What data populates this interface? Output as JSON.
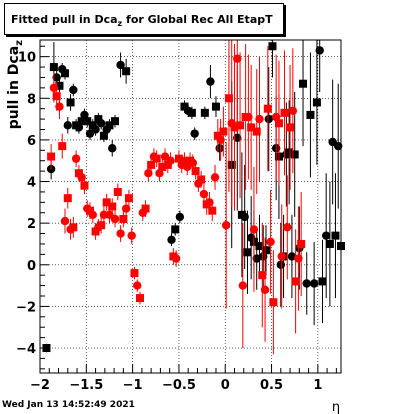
{
  "title": {
    "prefix": "Fitted pull in Dca",
    "sub": "z",
    "suffix": " for Global Rec All EtapT"
  },
  "footer": "Wed Jan 13 14:52:49 2021",
  "chart_data": {
    "type": "scatter",
    "xlabel": "η",
    "ylabel_prefix": "pull in Dca",
    "ylabel_sub": "z",
    "xlim": [
      -2.0,
      1.25
    ],
    "ylim": [
      -5.2,
      10.8
    ],
    "x_ticks": [
      -2,
      -1.5,
      -1,
      -0.5,
      0,
      0.5,
      1
    ],
    "x_tick_labels": [
      "−2",
      "−1.5",
      "−1",
      "−0.5",
      "0",
      "0.5",
      "1"
    ],
    "y_ticks": [
      -4,
      -2,
      0,
      2,
      4,
      6,
      8,
      10
    ],
    "y_tick_labels": [
      "−4",
      "−2",
      "0",
      "2",
      "4",
      "6",
      "8",
      "10"
    ],
    "grid": true,
    "series": [
      {
        "color": "#000000",
        "points": [
          {
            "x": -1.93,
            "y": -4.0,
            "e": 0.2
          },
          {
            "x": -1.88,
            "y": 4.6,
            "e": 0.5
          },
          {
            "x": -1.85,
            "y": 9.5,
            "e": 1.2
          },
          {
            "x": -1.82,
            "y": 9.0,
            "e": 0.4
          },
          {
            "x": -1.79,
            "y": 8.6,
            "e": 0.3
          },
          {
            "x": -1.76,
            "y": 9.4,
            "e": 0.3
          },
          {
            "x": -1.73,
            "y": 9.2,
            "e": 0.3
          },
          {
            "x": -1.7,
            "y": 6.7,
            "e": 0.4
          },
          {
            "x": -1.67,
            "y": 7.8,
            "e": 0.4
          },
          {
            "x": -1.64,
            "y": 8.4,
            "e": 0.3
          },
          {
            "x": -1.61,
            "y": 6.7,
            "e": 0.3
          },
          {
            "x": -1.58,
            "y": 6.6,
            "e": 0.3
          },
          {
            "x": -1.55,
            "y": 6.9,
            "e": 0.4
          },
          {
            "x": -1.52,
            "y": 7.2,
            "e": 0.3
          },
          {
            "x": -1.49,
            "y": 6.9,
            "e": 0.3
          },
          {
            "x": -1.46,
            "y": 6.3,
            "e": 0.3
          },
          {
            "x": -1.43,
            "y": 6.7,
            "e": 0.3
          },
          {
            "x": -1.4,
            "y": 6.5,
            "e": 0.3
          },
          {
            "x": -1.37,
            "y": 7.0,
            "e": 0.3
          },
          {
            "x": -1.34,
            "y": 6.8,
            "e": 0.3
          },
          {
            "x": -1.31,
            "y": 6.2,
            "e": 0.3
          },
          {
            "x": -1.28,
            "y": 6.5,
            "e": 0.3
          },
          {
            "x": -1.25,
            "y": 6.7,
            "e": 0.3
          },
          {
            "x": -1.22,
            "y": 5.6,
            "e": 0.4
          },
          {
            "x": -1.19,
            "y": 6.9,
            "e": 0.3
          },
          {
            "x": -1.13,
            "y": 9.6,
            "e": 0.6
          },
          {
            "x": -1.07,
            "y": 9.3,
            "e": 0.6
          },
          {
            "x": -0.58,
            "y": 1.2,
            "e": 0.3
          },
          {
            "x": -0.54,
            "y": 1.7,
            "e": 0.3
          },
          {
            "x": -0.49,
            "y": 2.3,
            "e": 0.3
          },
          {
            "x": -0.44,
            "y": 7.6,
            "e": 0.3
          },
          {
            "x": -0.4,
            "y": 7.4,
            "e": 0.3
          },
          {
            "x": -0.36,
            "y": 7.3,
            "e": 0.3
          },
          {
            "x": -0.33,
            "y": 6.3,
            "e": 0.3
          },
          {
            "x": -0.22,
            "y": 7.3,
            "e": 0.3
          },
          {
            "x": -0.16,
            "y": 8.8,
            "e": 0.8
          },
          {
            "x": -0.1,
            "y": 7.6,
            "e": 0.5
          },
          {
            "x": -0.06,
            "y": 5.6,
            "e": 0.6
          },
          {
            "x": 0.07,
            "y": 4.8,
            "e": 4.0
          },
          {
            "x": 0.13,
            "y": 6.1,
            "e": 3.5
          },
          {
            "x": 0.18,
            "y": 2.4,
            "e": 3.0
          },
          {
            "x": 0.21,
            "y": 2.3,
            "e": 2.5
          },
          {
            "x": 0.24,
            "y": 0.6,
            "e": 2.0
          },
          {
            "x": 0.28,
            "y": 1.3,
            "e": 2.0
          },
          {
            "x": 0.31,
            "y": 1.1,
            "e": 1.5
          },
          {
            "x": 0.34,
            "y": 0.3,
            "e": 1.5
          },
          {
            "x": 0.37,
            "y": 0.9,
            "e": 1.5
          },
          {
            "x": 0.41,
            "y": 0.4,
            "e": 1.5
          },
          {
            "x": 0.44,
            "y": 0.7,
            "e": 1.2
          },
          {
            "x": 0.47,
            "y": 7.0,
            "e": 2.5
          },
          {
            "x": 0.51,
            "y": 10.5,
            "e": 1.5
          },
          {
            "x": 0.55,
            "y": 5.6,
            "e": 2.5
          },
          {
            "x": 0.58,
            "y": 5.2,
            "e": 3.0
          },
          {
            "x": 0.6,
            "y": 0.0,
            "e": 2.0
          },
          {
            "x": 0.63,
            "y": 0.4,
            "e": 2.0
          },
          {
            "x": 0.66,
            "y": 5.3,
            "e": 2.5
          },
          {
            "x": 0.69,
            "y": 5.4,
            "e": 2.5
          },
          {
            "x": 0.72,
            "y": 0.4,
            "e": 2.0
          },
          {
            "x": 0.75,
            "y": 5.3,
            "e": 3.0
          },
          {
            "x": 0.8,
            "y": 0.8,
            "e": 2.0
          },
          {
            "x": 0.84,
            "y": 8.7,
            "e": 3.0
          },
          {
            "x": 0.88,
            "y": -0.9,
            "e": 1.5
          },
          {
            "x": 0.92,
            "y": 7.2,
            "e": 3.0
          },
          {
            "x": 0.96,
            "y": -0.9,
            "e": 2.0
          },
          {
            "x": 0.99,
            "y": 7.8,
            "e": 3.0
          },
          {
            "x": 1.02,
            "y": 10.3,
            "e": 2.0
          },
          {
            "x": 1.05,
            "y": -0.8,
            "e": 2.0
          },
          {
            "x": 1.09,
            "y": 1.4,
            "e": 3.0
          },
          {
            "x": 1.13,
            "y": 1.0,
            "e": 3.0
          },
          {
            "x": 1.16,
            "y": 5.9,
            "e": 3.0
          },
          {
            "x": 1.19,
            "y": 1.4,
            "e": 3.0
          },
          {
            "x": 1.22,
            "y": 5.7,
            "e": 3.0
          },
          {
            "x": 1.25,
            "y": 0.9,
            "e": 3.0
          }
        ]
      },
      {
        "color": "#ff0000",
        "points": [
          {
            "x": -1.88,
            "y": 5.2,
            "e": 0.6
          },
          {
            "x": -1.85,
            "y": 8.5,
            "e": 0.7
          },
          {
            "x": -1.82,
            "y": 8.1,
            "e": 0.7
          },
          {
            "x": -1.79,
            "y": 7.6,
            "e": 0.6
          },
          {
            "x": -1.76,
            "y": 5.7,
            "e": 0.6
          },
          {
            "x": -1.73,
            "y": 2.1,
            "e": 0.6
          },
          {
            "x": -1.7,
            "y": 3.2,
            "e": 0.5
          },
          {
            "x": -1.67,
            "y": 1.7,
            "e": 0.5
          },
          {
            "x": -1.64,
            "y": 1.8,
            "e": 0.5
          },
          {
            "x": -1.61,
            "y": 5.1,
            "e": 0.4
          },
          {
            "x": -1.58,
            "y": 4.4,
            "e": 0.4
          },
          {
            "x": -1.55,
            "y": 4.2,
            "e": 0.4
          },
          {
            "x": -1.52,
            "y": 3.8,
            "e": 0.4
          },
          {
            "x": -1.49,
            "y": 2.7,
            "e": 0.4
          },
          {
            "x": -1.46,
            "y": 2.6,
            "e": 0.4
          },
          {
            "x": -1.43,
            "y": 2.4,
            "e": 0.4
          },
          {
            "x": -1.4,
            "y": 1.6,
            "e": 0.4
          },
          {
            "x": -1.37,
            "y": 1.8,
            "e": 0.4
          },
          {
            "x": -1.34,
            "y": 1.9,
            "e": 0.4
          },
          {
            "x": -1.31,
            "y": 2.4,
            "e": 0.4
          },
          {
            "x": -1.28,
            "y": 3.0,
            "e": 0.4
          },
          {
            "x": -1.25,
            "y": 2.4,
            "e": 0.4
          },
          {
            "x": -1.22,
            "y": 2.8,
            "e": 0.4
          },
          {
            "x": -1.19,
            "y": 2.2,
            "e": 0.4
          },
          {
            "x": -1.16,
            "y": 3.5,
            "e": 0.4
          },
          {
            "x": -1.13,
            "y": 1.5,
            "e": 0.4
          },
          {
            "x": -1.1,
            "y": 2.2,
            "e": 0.4
          },
          {
            "x": -1.07,
            "y": 2.7,
            "e": 0.4
          },
          {
            "x": -1.04,
            "y": 3.2,
            "e": 0.4
          },
          {
            "x": -1.01,
            "y": 1.4,
            "e": 0.4
          },
          {
            "x": -0.98,
            "y": -0.4,
            "e": 0.3
          },
          {
            "x": -0.95,
            "y": -1.0,
            "e": 0.3
          },
          {
            "x": -0.92,
            "y": -1.6,
            "e": 0.3
          },
          {
            "x": -0.89,
            "y": 2.5,
            "e": 0.4
          },
          {
            "x": -0.86,
            "y": 2.7,
            "e": 0.4
          },
          {
            "x": -0.83,
            "y": 4.4,
            "e": 0.4
          },
          {
            "x": -0.8,
            "y": 4.8,
            "e": 0.4
          },
          {
            "x": -0.77,
            "y": 5.2,
            "e": 0.4
          },
          {
            "x": -0.74,
            "y": 5.1,
            "e": 0.4
          },
          {
            "x": -0.71,
            "y": 4.4,
            "e": 0.4
          },
          {
            "x": -0.68,
            "y": 4.7,
            "e": 0.4
          },
          {
            "x": -0.65,
            "y": 5.2,
            "e": 0.4
          },
          {
            "x": -0.62,
            "y": 4.8,
            "e": 0.4
          },
          {
            "x": -0.59,
            "y": 5.0,
            "e": 0.4
          },
          {
            "x": -0.56,
            "y": 0.4,
            "e": 0.4
          },
          {
            "x": -0.53,
            "y": 0.3,
            "e": 0.4
          },
          {
            "x": -0.5,
            "y": 5.1,
            "e": 0.4
          },
          {
            "x": -0.47,
            "y": 4.8,
            "e": 0.4
          },
          {
            "x": -0.44,
            "y": 5.0,
            "e": 0.4
          },
          {
            "x": -0.41,
            "y": 4.7,
            "e": 0.4
          },
          {
            "x": -0.38,
            "y": 5.0,
            "e": 0.4
          },
          {
            "x": -0.35,
            "y": 4.9,
            "e": 0.4
          },
          {
            "x": -0.32,
            "y": 4.5,
            "e": 0.4
          },
          {
            "x": -0.29,
            "y": 3.9,
            "e": 0.4
          },
          {
            "x": -0.26,
            "y": 4.1,
            "e": 0.4
          },
          {
            "x": -0.23,
            "y": 3.4,
            "e": 0.5
          },
          {
            "x": -0.2,
            "y": 2.9,
            "e": 0.5
          },
          {
            "x": -0.17,
            "y": 3.0,
            "e": 0.5
          },
          {
            "x": -0.14,
            "y": 2.6,
            "e": 0.5
          },
          {
            "x": -0.11,
            "y": 4.2,
            "e": 0.6
          },
          {
            "x": -0.08,
            "y": 6.2,
            "e": 0.8
          },
          {
            "x": -0.05,
            "y": 6.0,
            "e": 1.0
          },
          {
            "x": -0.02,
            "y": 6.4,
            "e": 1.2
          },
          {
            "x": 0.01,
            "y": 1.9,
            "e": 4.0
          },
          {
            "x": 0.04,
            "y": 8.0,
            "e": 4.5
          },
          {
            "x": 0.07,
            "y": 6.8,
            "e": 4.0
          },
          {
            "x": 0.1,
            "y": 6.6,
            "e": 4.0
          },
          {
            "x": 0.13,
            "y": 9.9,
            "e": 3.5
          },
          {
            "x": 0.16,
            "y": 6.7,
            "e": 3.5
          },
          {
            "x": 0.19,
            "y": -1.0,
            "e": 3.0
          },
          {
            "x": 0.22,
            "y": 7.1,
            "e": 3.5
          },
          {
            "x": 0.25,
            "y": 7.1,
            "e": 3.0
          },
          {
            "x": 0.28,
            "y": 6.6,
            "e": 3.0
          },
          {
            "x": 0.31,
            "y": 1.7,
            "e": 3.0
          },
          {
            "x": 0.34,
            "y": 6.4,
            "e": 3.0
          },
          {
            "x": 0.37,
            "y": 7.0,
            "e": 3.0
          },
          {
            "x": 0.4,
            "y": -0.5,
            "e": 2.5
          },
          {
            "x": 0.43,
            "y": -1.2,
            "e": 2.5
          },
          {
            "x": 0.46,
            "y": 7.5,
            "e": 3.0
          },
          {
            "x": 0.49,
            "y": 1.1,
            "e": 2.5
          },
          {
            "x": 0.52,
            "y": -1.8,
            "e": 2.5
          },
          {
            "x": 0.55,
            "y": 7.1,
            "e": 3.0
          },
          {
            "x": 0.58,
            "y": 6.8,
            "e": 3.0
          },
          {
            "x": 0.61,
            "y": 0.4,
            "e": 2.5
          },
          {
            "x": 0.64,
            "y": 7.3,
            "e": 3.0
          },
          {
            "x": 0.67,
            "y": 1.8,
            "e": 2.5
          },
          {
            "x": 0.7,
            "y": 6.6,
            "e": 3.0
          },
          {
            "x": 0.73,
            "y": 7.4,
            "e": 3.0
          },
          {
            "x": 0.76,
            "y": -0.8,
            "e": 2.5
          },
          {
            "x": 0.79,
            "y": 0.3,
            "e": 2.5
          },
          {
            "x": 0.82,
            "y": 1.0,
            "e": 2.5
          }
        ]
      }
    ]
  }
}
